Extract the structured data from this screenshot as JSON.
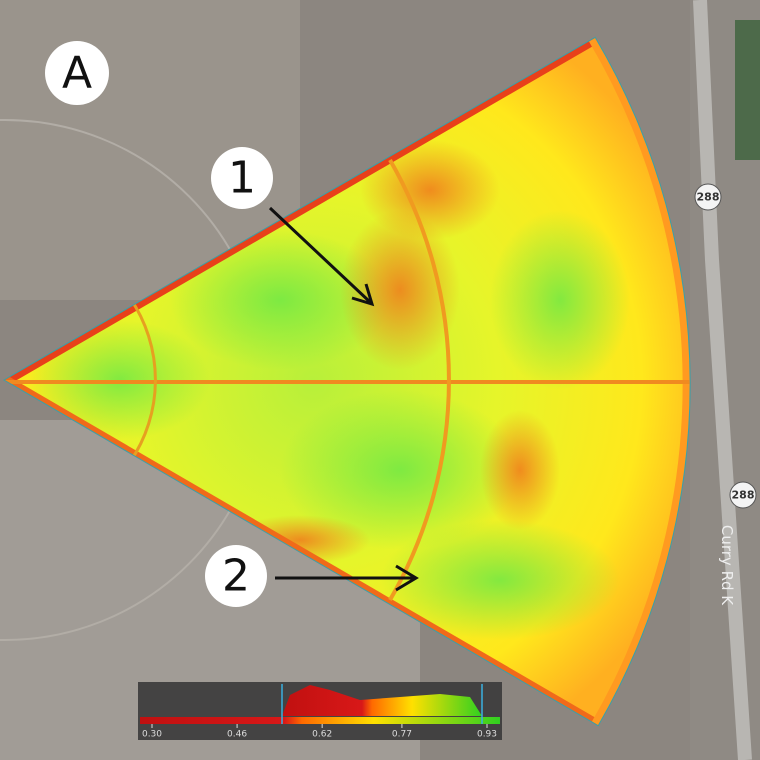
{
  "panel_label": "A",
  "markers": [
    {
      "label": "1"
    },
    {
      "label": "2"
    }
  ],
  "road_signs": [
    "288",
    "288"
  ],
  "road_name": "Curry Rd K",
  "legend": {
    "lim": [
      0.3,
      0.93
    ],
    "ticks": [
      {
        "value": 0.3,
        "label": "0.30"
      },
      {
        "value": 0.46,
        "label": "0.46"
      },
      {
        "value": 0.62,
        "label": "0.62"
      },
      {
        "value": 0.77,
        "label": "0.77"
      },
      {
        "value": 0.93,
        "label": "0.93"
      }
    ]
  }
}
